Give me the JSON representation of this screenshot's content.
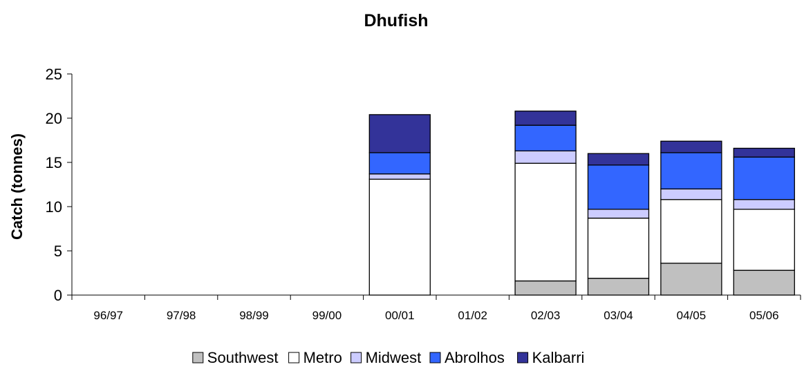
{
  "chart_data": {
    "type": "bar",
    "stacked": true,
    "title": "Dhufish",
    "xlabel": "",
    "ylabel": "Catch (tonnes)",
    "ylim": [
      0,
      25
    ],
    "yticks": [
      0,
      5,
      10,
      15,
      20,
      25
    ],
    "grid": false,
    "legend_position": "bottom",
    "categories": [
      "96/97",
      "97/98",
      "98/99",
      "99/00",
      "00/01",
      "01/02",
      "02/03",
      "03/04",
      "04/05",
      "05/06"
    ],
    "series": [
      {
        "name": "Southwest",
        "color": "#c0c0c0",
        "values": [
          0,
          0,
          0,
          0,
          0,
          0,
          1.6,
          1.9,
          3.6,
          2.8
        ]
      },
      {
        "name": "Metro",
        "color": "#ffffff",
        "values": [
          0,
          0,
          0,
          0,
          13.1,
          0,
          13.3,
          6.8,
          7.2,
          6.9
        ]
      },
      {
        "name": "Midwest",
        "color": "#ccccff",
        "values": [
          0,
          0,
          0,
          0,
          0.6,
          0,
          1.4,
          1.0,
          1.2,
          1.1
        ]
      },
      {
        "name": "Abrolhos",
        "color": "#3366ff",
        "values": [
          0,
          0,
          0,
          0,
          2.4,
          0,
          2.9,
          5.0,
          4.1,
          4.8
        ]
      },
      {
        "name": "Kalbarri",
        "color": "#333399",
        "values": [
          0,
          0,
          0,
          0,
          4.3,
          0,
          1.6,
          1.3,
          1.3,
          1.0
        ]
      }
    ]
  }
}
